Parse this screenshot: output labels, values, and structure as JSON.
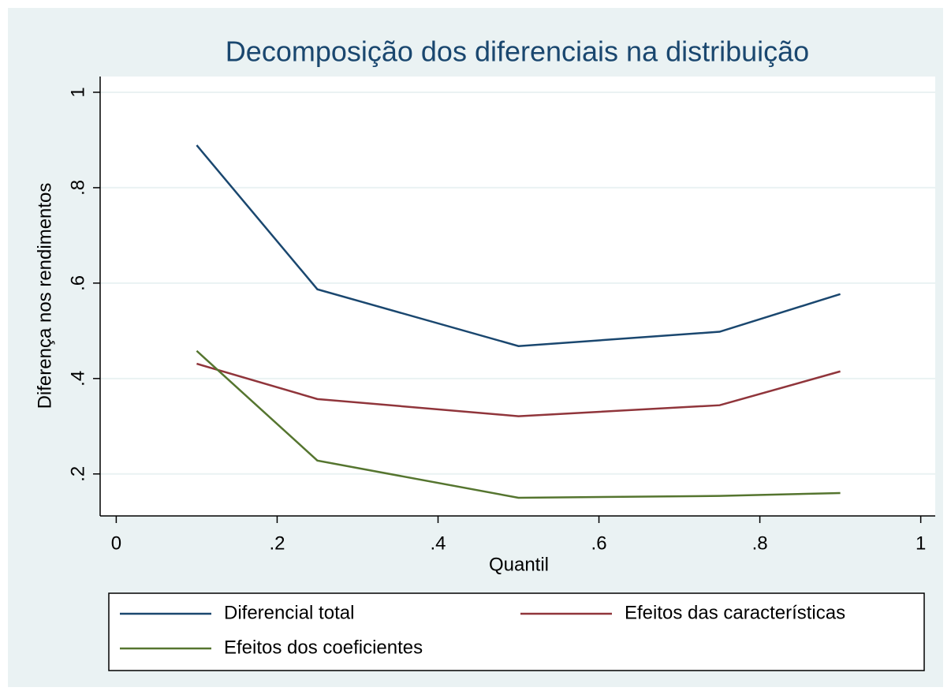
{
  "chart_data": {
    "type": "line",
    "title": "Decomposição dos diferenciais na distribuição",
    "xlabel": "Quantil",
    "ylabel": "Diferença nos rendimentos",
    "x": [
      0.1,
      0.25,
      0.5,
      0.75,
      0.9
    ],
    "series": [
      {
        "name": "Diferencial total",
        "color": "#1a476f",
        "values": [
          0.889,
          0.587,
          0.468,
          0.498,
          0.577
        ]
      },
      {
        "name": "Efeitos das características",
        "color": "#90353b",
        "values": [
          0.431,
          0.357,
          0.321,
          0.344,
          0.415
        ]
      },
      {
        "name": "Efeitos dos coeficientes",
        "color": "#55752f",
        "values": [
          0.458,
          0.228,
          0.15,
          0.154,
          0.16
        ]
      }
    ],
    "xlim": [
      -0.02,
      1.018
    ],
    "ylim": [
      0.112,
      1.033
    ],
    "xticks": [
      0,
      {
        "value": 0.2,
        "label": ".2"
      },
      {
        "value": 0.4,
        "label": ".4"
      },
      {
        "value": 0.6,
        "label": ".6"
      },
      {
        "value": 0.8,
        "label": ".8"
      },
      1
    ],
    "yticks": [
      {
        "value": 0.2,
        "label": ".2"
      },
      {
        "value": 0.4,
        "label": ".4"
      },
      {
        "value": 0.6,
        "label": ".6"
      },
      {
        "value": 0.8,
        "label": ".8"
      },
      1
    ],
    "grid": true,
    "legend": "bottom"
  }
}
